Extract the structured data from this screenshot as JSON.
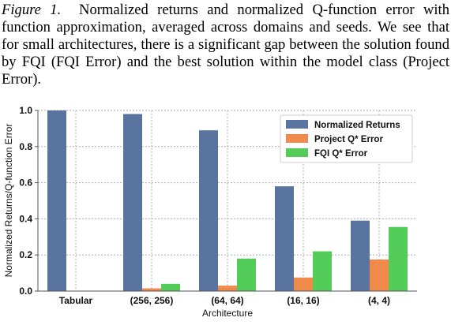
{
  "caption": {
    "label": "Figure 1.",
    "text": "Normalized returns and normalized Q-function error with function approximation, averaged across domains and seeds. We see that for small architectures, there is a significant gap between the solution found by FQI (FQI Error) and the best solution within the model class (Project Error)."
  },
  "chart_data": {
    "type": "bar",
    "categories": [
      "Tabular",
      "(256, 256)",
      "(64, 64)",
      "(16, 16)",
      "(4, 4)"
    ],
    "series": [
      {
        "name": "Normalized Returns",
        "color": "#5a74a0",
        "values": [
          1.0,
          0.98,
          0.89,
          0.58,
          0.39
        ]
      },
      {
        "name": "Project Q* Error",
        "color": "#ef8a4a",
        "values": [
          0.0,
          0.015,
          0.03,
          0.075,
          0.175
        ]
      },
      {
        "name": "FQI Q* Error",
        "color": "#53cc5a",
        "values": [
          0.0,
          0.04,
          0.18,
          0.22,
          0.355
        ]
      }
    ],
    "xlabel": "Architecture",
    "ylabel": "Normalized Returns/Q-function Error",
    "ylim": [
      0,
      1.0
    ],
    "yticks": [
      "0.0",
      "0.2",
      "0.4",
      "0.6",
      "0.8",
      "1.0"
    ],
    "grid": true,
    "legend_position": "top-right"
  }
}
